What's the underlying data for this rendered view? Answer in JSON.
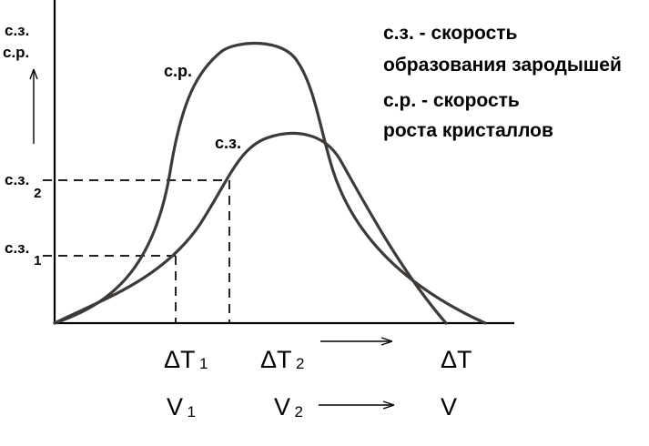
{
  "y_axis": {
    "label_line1": "с.з.",
    "label_line2": "с.р."
  },
  "curves": {
    "growth_label": "с.р.",
    "nucleation_label": "с.з."
  },
  "y_markers": {
    "sz2": {
      "text": "с.з.",
      "sub": "2"
    },
    "sz1": {
      "text": "с.з.",
      "sub": "1"
    }
  },
  "x_labels": {
    "dt1": {
      "text": "ΔT",
      "sub": "1"
    },
    "dt2": {
      "text": "ΔT",
      "sub": "2"
    },
    "dt": {
      "text": "ΔT"
    }
  },
  "v_labels": {
    "v1": {
      "text": "V",
      "sub": "1"
    },
    "v2": {
      "text": "V",
      "sub": "2"
    },
    "v": {
      "text": "V"
    }
  },
  "legend": {
    "line1": "с.з. - скорость",
    "line2": "образования зародышей",
    "line3": "с.р. - скорость",
    "line4": "роста кристаллов"
  },
  "colors": {
    "ink": "#000000",
    "curve": "#3d3a38",
    "background": "#ffffff"
  }
}
